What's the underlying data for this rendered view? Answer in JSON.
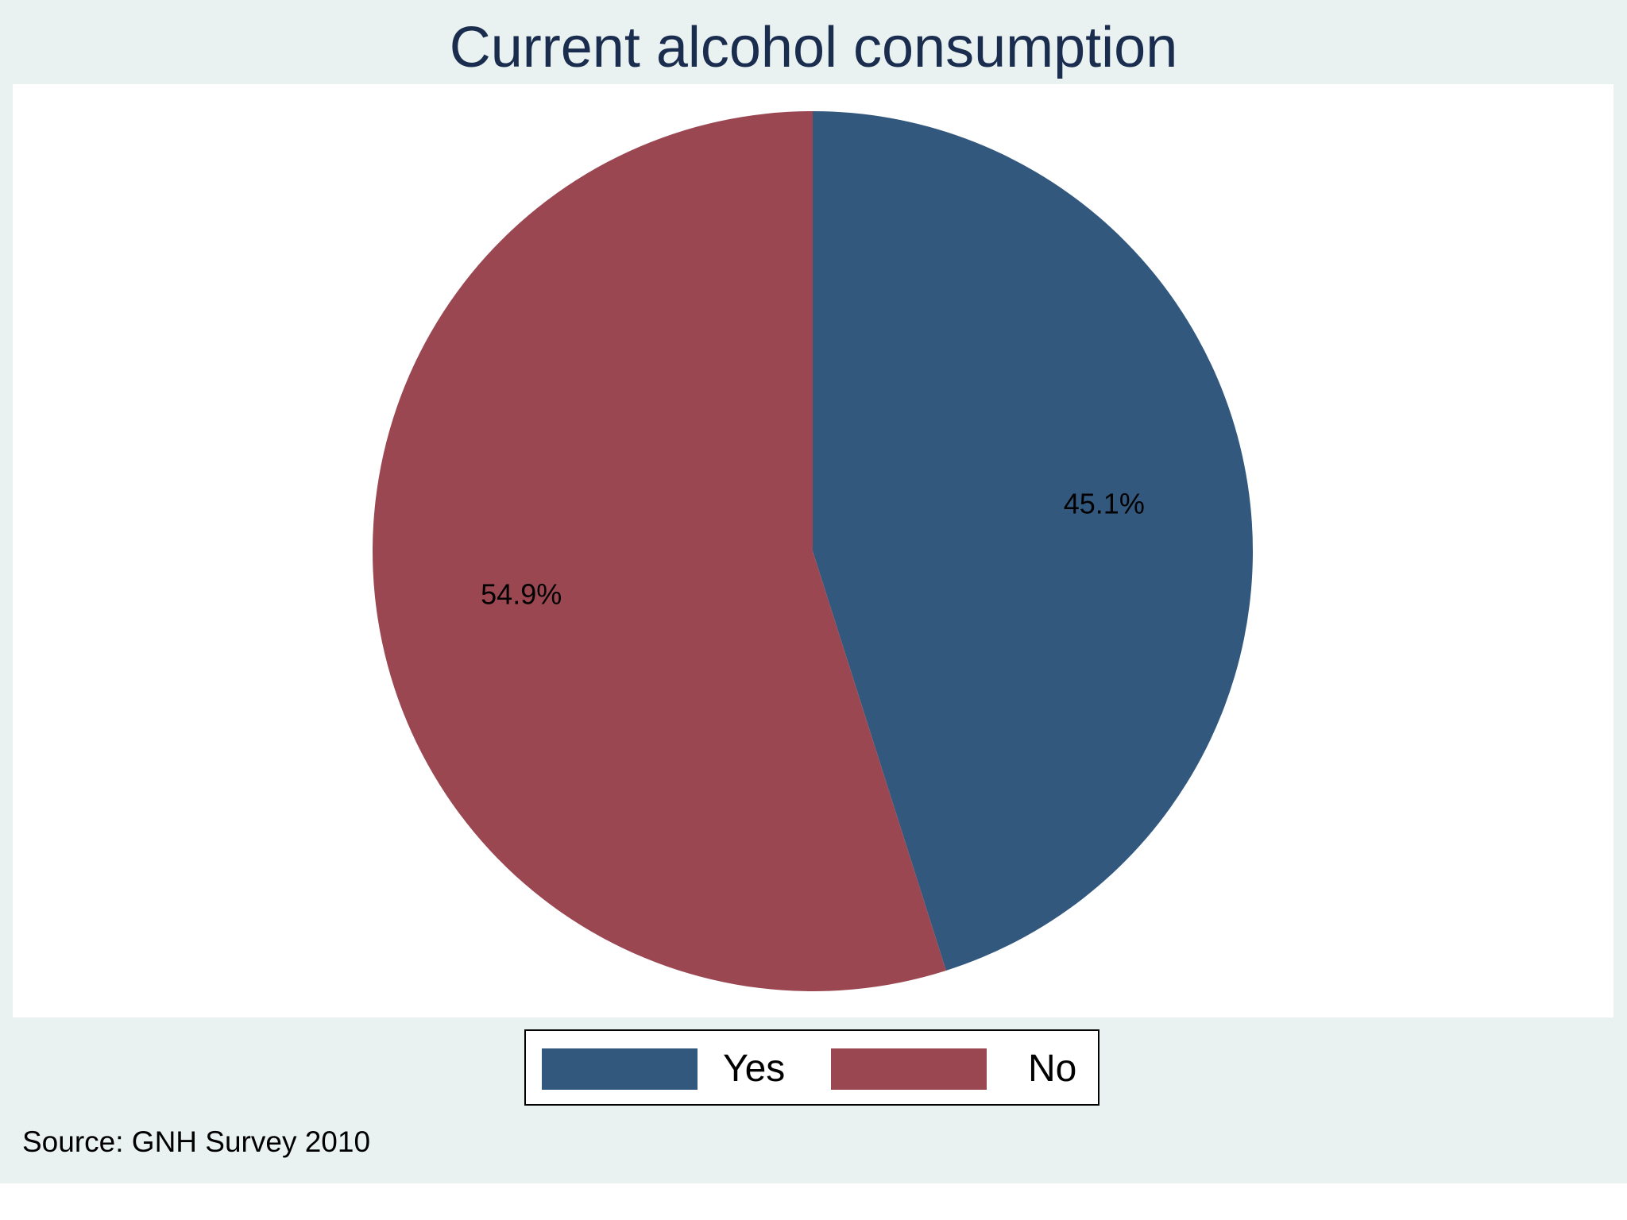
{
  "chart_data": {
    "type": "pie",
    "title": "Current alcohol consumption",
    "slices": [
      {
        "label": "Yes",
        "value": 45.1,
        "display": "45.1%",
        "color": "#33587e"
      },
      {
        "label": "No",
        "value": 54.9,
        "display": "54.9%",
        "color": "#9b4752"
      }
    ],
    "legend": {
      "placement": "bottom",
      "entries": [
        "Yes",
        "No"
      ]
    },
    "note": "Source: GNH Survey 2010"
  },
  "colors": {
    "background": "#e9f2f1",
    "plot_background": "#ffffff",
    "title": "#1a2d4f"
  }
}
